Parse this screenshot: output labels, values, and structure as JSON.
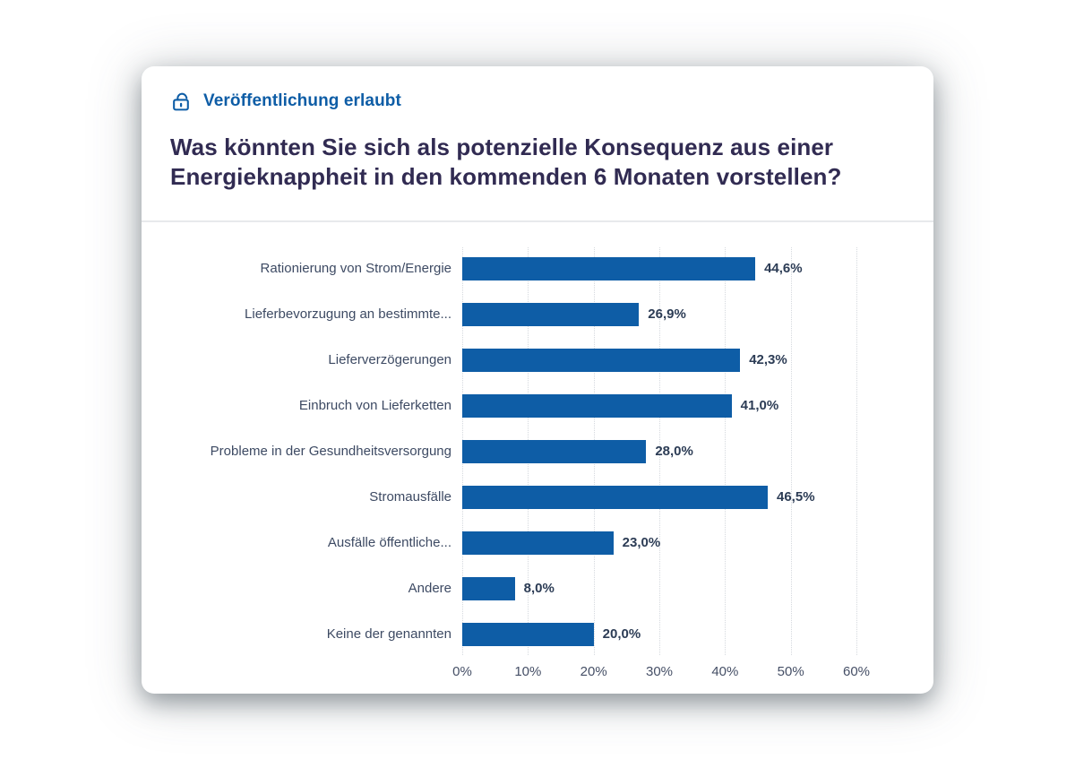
{
  "header": {
    "badge": {
      "label": "Veröffentlichung erlaubt",
      "icon": "unlock-icon"
    },
    "title_lines": [
      "Was könnten Sie sich als potenzielle Konsequenz aus einer",
      "Energieknappheit in den kommenden 6 Monaten vorstellen?"
    ]
  },
  "colors": {
    "accent_blue": "#0e5da6",
    "title_text": "#312b52",
    "category_text": "#3d4a63",
    "value_text": "#2c3c55",
    "tick_text": "#454f66",
    "gridline": "#d5d9de",
    "divider": "#e8e9ec",
    "card_bg": "#ffffff"
  },
  "chart_data": {
    "type": "bar",
    "orientation": "horizontal",
    "title": "Was könnten Sie sich als potenzielle Konsequenz aus einer Energieknappheit in den kommenden 6 Monaten vorstellen?",
    "categories": [
      "Rationierung von Strom/Energie",
      "Lieferbevorzugung an bestimmte...",
      "Lieferverzögerungen",
      "Einbruch von Lieferketten",
      "Probleme in der Gesundheitsversorgung",
      "Stromausfälle",
      "Ausfälle öffentliche...",
      "Andere",
      "Keine der genannten"
    ],
    "values": [
      44.6,
      26.9,
      42.3,
      41.0,
      28.0,
      46.5,
      23.0,
      8.0,
      20.0
    ],
    "value_labels": [
      "44,6%",
      "26,9%",
      "42,3%",
      "41,0%",
      "28,0%",
      "46,5%",
      "23,0%",
      "8,0%",
      "20,0%"
    ],
    "xlim": [
      0,
      60
    ],
    "x_ticks": [
      "0%",
      "10%",
      "20%",
      "30%",
      "40%",
      "50%",
      "60%"
    ],
    "grid": "vertical-dotted",
    "legend": "none",
    "bar_color": "#0e5da6"
  }
}
